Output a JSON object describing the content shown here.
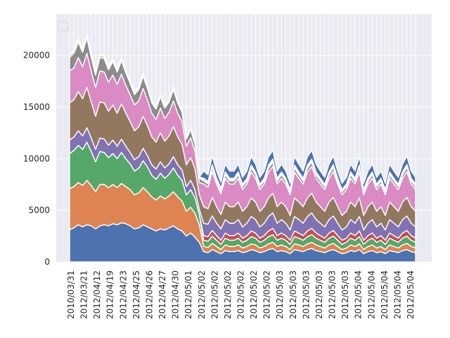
{
  "chart_data": {
    "type": "area",
    "stacked": true,
    "style": "seaborn-darkgrid",
    "background": "#eaeaf2",
    "gridlines": true,
    "grid_color": "#ffffff",
    "legend": {
      "placement": "top-left",
      "entries": []
    },
    "title": "",
    "xlabel": "",
    "ylabel": "",
    "ylim": [
      0,
      24000
    ],
    "yticks": [
      0,
      5000,
      10000,
      15000,
      20000
    ],
    "x_tick_labels": [
      "2010/03/31",
      "2012/03/21",
      "2012/04/12",
      "2012/04/19",
      "2012/04/23",
      "2012/04/25",
      "2012/04/26",
      "2012/04/27",
      "2012/04/30",
      "2012/05/01",
      "2012/05/02",
      "2012/05/02",
      "2012/05/02",
      "2012/05/02",
      "2012/05/02",
      "2012/05/02",
      "2012/05/03",
      "2012/05/03",
      "2012/05/03",
      "2012/05/03",
      "2012/05/03",
      "2012/05/03",
      "2012/05/04",
      "2012/05/04",
      "2012/05/04",
      "2012/05/04",
      "2012/05/04"
    ],
    "num_points": 81,
    "stack_colors": [
      "#4c72b0",
      "#dd8452",
      "#55a868",
      "#c44e52",
      "#8172b3",
      "#937860",
      "#da8bc3",
      "#8c8c8c",
      "#ccb974",
      "#64b5cd",
      "#4c72b0"
    ],
    "series": [
      {
        "values": [
          3100,
          3300,
          3600,
          3400,
          3600,
          3500,
          3200,
          3500,
          3600,
          3500,
          3700,
          3600,
          3800,
          3700,
          3500,
          3200,
          3300,
          3600,
          3400,
          3200,
          3000,
          3200,
          3100,
          3300,
          3500,
          3200,
          3000,
          2500,
          2800,
          2400,
          1900,
          1000,
          900,
          1200,
          1000,
          800,
          1100,
          1000,
          1000,
          1100,
          900,
          1000,
          1200,
          1100,
          900,
          1000,
          1200,
          1300,
          1000,
          1100,
          1000,
          800,
          1200,
          1100,
          1000,
          1200,
          1300,
          1100,
          1000,
          900,
          1100,
          1200,
          1000,
          800,
          900,
          1100,
          1000,
          1200,
          800,
          1000,
          1100,
          900,
          1000,
          800,
          1100,
          1000,
          900,
          1100,
          1200,
          1000,
          900
        ]
      },
      {
        "values": [
          4000,
          4000,
          4100,
          4000,
          4300,
          3900,
          3600,
          4000,
          3900,
          3700,
          3800,
          3600,
          3800,
          3600,
          3500,
          3300,
          3400,
          3600,
          3400,
          3100,
          3000,
          3200,
          3000,
          3100,
          3300,
          3100,
          2900,
          2400,
          2500,
          2300,
          1700,
          500,
          500,
          600,
          500,
          400,
          550,
          500,
          500,
          550,
          450,
          500,
          550,
          550,
          450,
          500,
          550,
          600,
          500,
          550,
          500,
          400,
          550,
          550,
          500,
          550,
          600,
          550,
          500,
          450,
          550,
          600,
          500,
          400,
          450,
          550,
          500,
          550,
          400,
          500,
          550,
          450,
          500,
          400,
          550,
          500,
          450,
          550,
          600,
          500,
          450
        ]
      },
      {
        "values": [
          3400,
          3500,
          3600,
          3500,
          3700,
          3300,
          2900,
          3200,
          3100,
          2900,
          3000,
          2800,
          3000,
          2700,
          2500,
          2300,
          2400,
          2600,
          2400,
          2100,
          2000,
          2200,
          2000,
          2100,
          2300,
          2100,
          2000,
          1600,
          1700,
          1500,
          1000,
          600,
          600,
          700,
          600,
          500,
          650,
          600,
          600,
          650,
          550,
          600,
          700,
          650,
          550,
          600,
          700,
          750,
          600,
          650,
          600,
          500,
          700,
          650,
          600,
          700,
          750,
          650,
          600,
          550,
          650,
          700,
          600,
          500,
          550,
          650,
          600,
          700,
          500,
          600,
          650,
          550,
          600,
          500,
          650,
          600,
          550,
          650,
          700,
          600,
          550
        ]
      },
      {
        "values": [
          0,
          0,
          0,
          0,
          0,
          0,
          0,
          0,
          0,
          0,
          0,
          0,
          0,
          0,
          0,
          0,
          0,
          0,
          0,
          0,
          0,
          0,
          0,
          0,
          0,
          0,
          0,
          0,
          0,
          0,
          0,
          450,
          450,
          550,
          450,
          400,
          500,
          450,
          450,
          500,
          400,
          450,
          550,
          500,
          400,
          450,
          550,
          600,
          450,
          500,
          450,
          400,
          550,
          500,
          450,
          550,
          600,
          500,
          450,
          400,
          500,
          550,
          450,
          400,
          400,
          500,
          450,
          550,
          400,
          450,
          500,
          400,
          450,
          400,
          500,
          450,
          400,
          500,
          550,
          450,
          400
        ]
      },
      {
        "values": [
          1300,
          1300,
          1400,
          1300,
          1400,
          1300,
          1200,
          1300,
          1300,
          1200,
          1300,
          1200,
          1300,
          1200,
          1100,
          1100,
          1100,
          1200,
          1100,
          1000,
          1000,
          1100,
          1000,
          1000,
          1100,
          1000,
          1000,
          800,
          900,
          800,
          500,
          1200,
          1200,
          1400,
          1200,
          1100,
          1300,
          1200,
          1200,
          1300,
          1100,
          1200,
          1400,
          1300,
          1100,
          1200,
          1400,
          1500,
          1200,
          1300,
          1200,
          1000,
          1400,
          1300,
          1200,
          1400,
          1500,
          1300,
          1200,
          1100,
          1300,
          1400,
          1200,
          1000,
          1100,
          1300,
          1200,
          1400,
          1000,
          1200,
          1300,
          1100,
          1200,
          1000,
          1300,
          1200,
          1100,
          1300,
          1400,
          1200,
          1100
        ]
      },
      {
        "values": [
          3600,
          3600,
          3800,
          3600,
          3900,
          3500,
          3200,
          3500,
          3500,
          3300,
          3400,
          3200,
          3400,
          3200,
          3000,
          2800,
          2900,
          3100,
          2900,
          2700,
          2600,
          2800,
          2600,
          2700,
          2900,
          2700,
          2500,
          2100,
          2200,
          2000,
          1400,
          1600,
          1500,
          1800,
          1600,
          1400,
          1700,
          1600,
          1600,
          1700,
          1500,
          1600,
          1800,
          1700,
          1500,
          1600,
          1800,
          1900,
          1600,
          1700,
          1600,
          1400,
          1800,
          1700,
          1600,
          1800,
          1900,
          1700,
          1600,
          1500,
          1700,
          1800,
          1600,
          1400,
          1500,
          1700,
          1600,
          1800,
          1400,
          1600,
          1700,
          1500,
          1600,
          1400,
          1700,
          1600,
          1500,
          1700,
          1800,
          1600,
          1500
        ]
      },
      {
        "values": [
          3100,
          3100,
          3300,
          3100,
          3300,
          3000,
          2800,
          3000,
          3000,
          2800,
          2900,
          2800,
          2900,
          2700,
          2600,
          2500,
          2500,
          2700,
          2500,
          2300,
          2200,
          2400,
          2200,
          2300,
          2500,
          2300,
          2200,
          1800,
          1900,
          1700,
          1200,
          2200,
          2100,
          2500,
          2200,
          2000,
          2300,
          2200,
          2200,
          2300,
          2100,
          2200,
          2500,
          2300,
          2100,
          2200,
          2500,
          2600,
          2200,
          2300,
          2200,
          2000,
          2500,
          2300,
          2200,
          2500,
          2600,
          2300,
          2200,
          2100,
          2300,
          2500,
          2200,
          2000,
          2100,
          2300,
          2200,
          2500,
          2000,
          2200,
          2300,
          2100,
          2200,
          2000,
          2300,
          2200,
          2100,
          2300,
          2500,
          2200,
          2100
        ]
      },
      {
        "values": [
          1300,
          1400,
          1500,
          1400,
          1500,
          1300,
          1200,
          1300,
          1300,
          1200,
          1300,
          1200,
          1300,
          1200,
          1100,
          1000,
          1100,
          1200,
          1100,
          1000,
          1000,
          1100,
          1000,
          1000,
          1100,
          1000,
          900,
          700,
          800,
          700,
          400,
          300,
          300,
          400,
          300,
          300,
          350,
          300,
          300,
          350,
          300,
          300,
          400,
          350,
          300,
          300,
          400,
          400,
          300,
          350,
          300,
          300,
          400,
          350,
          300,
          400,
          400,
          350,
          300,
          300,
          350,
          400,
          300,
          300,
          300,
          350,
          300,
          400,
          300,
          300,
          350,
          300,
          300,
          300,
          350,
          300,
          300,
          350,
          400,
          300,
          300
        ]
      },
      {
        "values": [
          200,
          200,
          220,
          200,
          220,
          200,
          180,
          200,
          200,
          180,
          190,
          180,
          190,
          180,
          170,
          160,
          160,
          170,
          160,
          150,
          150,
          160,
          150,
          150,
          160,
          150,
          140,
          110,
          120,
          110,
          80,
          150,
          140,
          170,
          150,
          130,
          160,
          150,
          150,
          160,
          140,
          150,
          170,
          160,
          140,
          150,
          170,
          180,
          150,
          160,
          150,
          130,
          170,
          160,
          150,
          170,
          180,
          160,
          150,
          140,
          160,
          170,
          150,
          130,
          140,
          160,
          150,
          170,
          130,
          150,
          160,
          140,
          150,
          130,
          160,
          150,
          140,
          160,
          170,
          150,
          140
        ]
      },
      {
        "values": [
          100,
          100,
          110,
          100,
          110,
          100,
          90,
          100,
          100,
          90,
          95,
          90,
          95,
          90,
          85,
          80,
          80,
          85,
          80,
          75,
          75,
          80,
          75,
          75,
          80,
          75,
          70,
          55,
          60,
          55,
          40,
          100,
          100,
          120,
          100,
          90,
          110,
          100,
          100,
          110,
          90,
          100,
          120,
          110,
          90,
          100,
          120,
          130,
          100,
          110,
          100,
          90,
          120,
          110,
          100,
          120,
          130,
          110,
          100,
          90,
          110,
          120,
          100,
          90,
          90,
          110,
          100,
          120,
          90,
          100,
          110,
          90,
          100,
          90,
          110,
          100,
          90,
          110,
          120,
          100,
          90
        ]
      },
      {
        "values": [
          0,
          0,
          0,
          0,
          0,
          0,
          0,
          0,
          0,
          0,
          0,
          0,
          0,
          0,
          0,
          0,
          0,
          0,
          0,
          0,
          0,
          0,
          0,
          0,
          0,
          0,
          0,
          0,
          0,
          0,
          0,
          700,
          650,
          800,
          700,
          600,
          750,
          700,
          700,
          750,
          650,
          700,
          800,
          750,
          650,
          700,
          800,
          850,
          700,
          750,
          700,
          600,
          800,
          750,
          700,
          800,
          850,
          750,
          700,
          650,
          750,
          800,
          700,
          600,
          650,
          750,
          700,
          800,
          600,
          700,
          750,
          650,
          700,
          600,
          750,
          700,
          650,
          750,
          800,
          700,
          650
        ]
      }
    ]
  }
}
